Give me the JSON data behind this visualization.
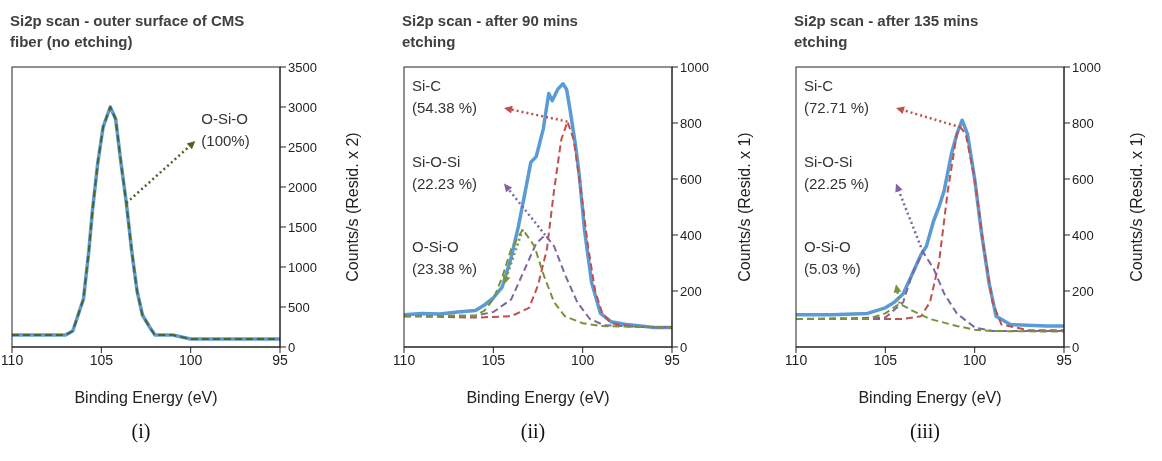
{
  "chart_data": [
    {
      "type": "line",
      "title": "Si2p scan - outer surface of CMS\nfiber (no etching)",
      "xlabel": "Binding Energy (eV)",
      "ylabel": "Counts/s (Resid. x 2)",
      "xlim": [
        110,
        95
      ],
      "xticks": [
        110,
        105,
        100,
        95
      ],
      "ylim": [
        0,
        3500
      ],
      "yticks": [
        0,
        500,
        1000,
        1500,
        2000,
        2500,
        3000,
        3500
      ],
      "series": [
        {
          "color": "#5b9bd5",
          "line_style": "solid",
          "x": [
            110,
            109,
            108,
            107,
            106.6,
            106.3,
            106,
            105.7,
            105.5,
            105.2,
            104.9,
            104.5,
            104.2,
            103.9,
            103.6,
            103.3,
            103,
            102.7,
            102.3,
            102,
            101,
            100,
            98,
            96,
            95
          ],
          "values": [
            150,
            150,
            150,
            150,
            200,
            400,
            600,
            1200,
            1700,
            2300,
            2750,
            3000,
            2850,
            2300,
            1800,
            1200,
            700,
            400,
            250,
            150,
            150,
            100,
            100,
            100,
            100
          ]
        },
        {
          "color": "#4f6228",
          "line_style": "dashed",
          "x": [
            110,
            109,
            108,
            107,
            106.6,
            106.3,
            106,
            105.7,
            105.5,
            105.2,
            104.9,
            104.5,
            104.2,
            103.9,
            103.6,
            103.3,
            103,
            102.7,
            102.3,
            102,
            101,
            100,
            98,
            96,
            95
          ],
          "values": [
            150,
            150,
            150,
            150,
            200,
            400,
            600,
            1200,
            1700,
            2300,
            2750,
            3000,
            2850,
            2300,
            1800,
            1200,
            700,
            400,
            250,
            150,
            150,
            100,
            100,
            100,
            100
          ]
        }
      ],
      "annotations": [
        {
          "text": "O-Si-O\n(100%)",
          "x": 103.6,
          "y": 1800
        },
        "(i)"
      ]
    },
    {
      "type": "line",
      "title": "Si2p scan - after 90 mins\netching",
      "xlabel": "Binding Energy (eV)",
      "ylabel": "Counts/s (Resid. x 1)",
      "xlim": [
        110,
        95
      ],
      "xticks": [
        110,
        105,
        100,
        95
      ],
      "ylim": [
        0,
        1000
      ],
      "yticks": [
        0,
        200,
        400,
        600,
        800,
        1000
      ],
      "series": [
        {
          "color": "#5b9bd5",
          "line_style": "solid",
          "x": [
            110,
            109,
            108,
            107,
            106,
            105.5,
            105,
            104.5,
            104,
            103.6,
            103.2,
            102.9,
            102.6,
            102.2,
            101.9,
            101.7,
            101.4,
            101.1,
            100.9,
            100.7,
            100.4,
            100.2,
            99.9,
            99.5,
            99,
            98.4,
            97.5,
            96,
            95
          ],
          "values": [
            115,
            120,
            118,
            125,
            130,
            150,
            175,
            215,
            320,
            430,
            560,
            660,
            680,
            780,
            905,
            880,
            920,
            940,
            920,
            845,
            720,
            620,
            420,
            230,
            120,
            90,
            80,
            70,
            70
          ]
        },
        {
          "color": "#c0504d",
          "line_style": "dashed",
          "x": [
            110,
            106,
            104,
            103,
            102.5,
            102,
            101.6,
            101.2,
            100.85,
            100.5,
            100.1,
            99.7,
            99.3,
            98.9,
            98.4,
            97,
            95
          ],
          "values": [
            110,
            105,
            110,
            140,
            220,
            350,
            560,
            740,
            805,
            740,
            560,
            360,
            200,
            120,
            85,
            72,
            70
          ]
        },
        {
          "color": "#8064a2",
          "line_style": "dashed",
          "x": [
            110,
            106,
            105,
            104,
            103.3,
            102.6,
            102.1,
            101.6,
            101,
            100.3,
            99.6,
            98.8,
            97,
            95
          ],
          "values": [
            110,
            112,
            125,
            170,
            270,
            370,
            400,
            360,
            260,
            160,
            100,
            78,
            72,
            70
          ]
        },
        {
          "color": "#77933c",
          "line_style": "dashed",
          "x": [
            110,
            106,
            105.5,
            105,
            104.5,
            104,
            103.35,
            102.7,
            102.2,
            101.6,
            101,
            100,
            99,
            97,
            95
          ],
          "values": [
            110,
            112,
            130,
            170,
            250,
            350,
            420,
            360,
            260,
            160,
            110,
            85,
            75,
            72,
            70
          ]
        }
      ],
      "annotations": [
        "Si-C\n(54.38 %)",
        "Si-O-Si\n(22.23 %)",
        "O-Si-O\n(23.38 %)",
        "(ii)"
      ]
    },
    {
      "type": "line",
      "title": "Si2p scan - after 135 mins\netching",
      "xlabel": "Binding Energy (eV)",
      "ylabel": "Counts/s (Resid. x 1)",
      "xlim": [
        110,
        95
      ],
      "xticks": [
        110,
        105,
        100,
        95
      ],
      "ylim": [
        0,
        1000
      ],
      "yticks": [
        0,
        200,
        400,
        600,
        800,
        1000
      ],
      "series": [
        {
          "color": "#5b9bd5",
          "line_style": "solid",
          "x": [
            110,
            108,
            106,
            105,
            104.5,
            104,
            103.5,
            103,
            102.7,
            102.3,
            102,
            101.7,
            101.3,
            101,
            100.7,
            100.4,
            100,
            99.6,
            99.2,
            98.8,
            98,
            96,
            95
          ],
          "values": [
            115,
            115,
            120,
            140,
            160,
            190,
            260,
            330,
            360,
            450,
            500,
            560,
            690,
            760,
            810,
            760,
            600,
            400,
            230,
            110,
            80,
            75,
            75
          ]
        },
        {
          "color": "#c0504d",
          "line_style": "dashed",
          "x": [
            110,
            104,
            103,
            102.5,
            102,
            101.5,
            101,
            100.8,
            100.5,
            100,
            99.5,
            99,
            98.5,
            97,
            95
          ],
          "values": [
            100,
            100,
            110,
            160,
            300,
            560,
            760,
            785,
            760,
            600,
            360,
            160,
            80,
            60,
            60
          ]
        },
        {
          "color": "#8064a2",
          "line_style": "dashed",
          "x": [
            110,
            105,
            104,
            103.5,
            102.9,
            102.3,
            101.7,
            101,
            100,
            99,
            95
          ],
          "values": [
            100,
            105,
            160,
            260,
            340,
            280,
            190,
            120,
            70,
            57,
            57
          ]
        },
        {
          "color": "#77933c",
          "line_style": "dashed",
          "x": [
            110,
            106,
            105,
            104.2,
            103.5,
            102.5,
            101,
            100,
            99,
            95
          ],
          "values": [
            100,
            100,
            120,
            155,
            130,
            100,
            75,
            62,
            57,
            55
          ]
        }
      ],
      "annotations": [
        "Si-C\n(72.71 %)",
        "Si-O-Si\n(22.25 %)",
        "O-Si-O\n(5.03 %)",
        "(iii)"
      ]
    }
  ]
}
